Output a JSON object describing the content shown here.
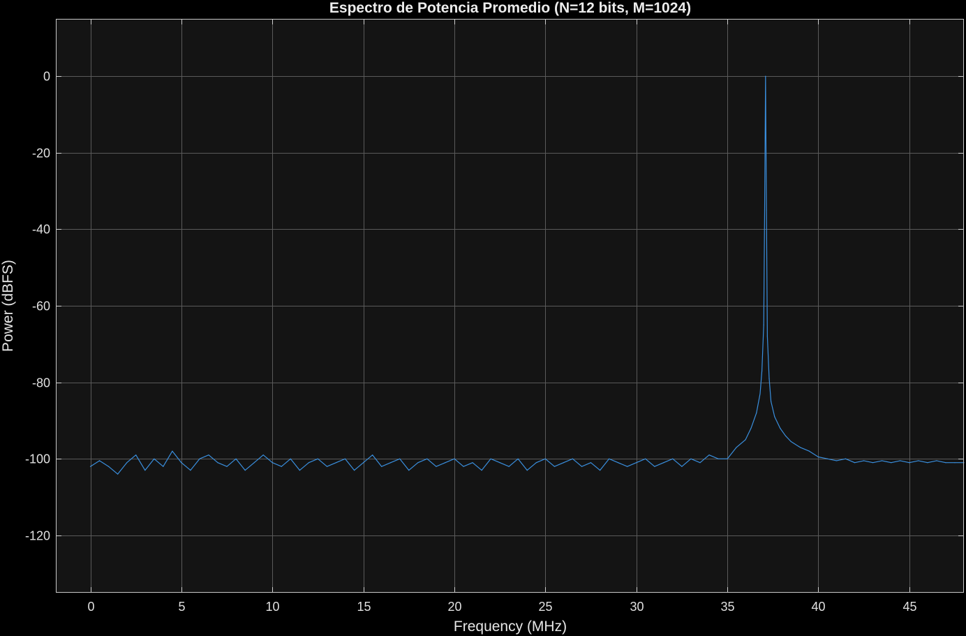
{
  "chart_data": {
    "type": "line",
    "title": "Espectro de Potencia Promedio (N=12 bits, M=1024)",
    "xlabel": "Frequency (MHz)",
    "ylabel": "Power (dBFS)",
    "xlim": [
      -1.9,
      48
    ],
    "ylim": [
      -135,
      15
    ],
    "xticks": [
      0,
      5,
      10,
      15,
      20,
      25,
      30,
      35,
      40,
      45
    ],
    "yticks": [
      0,
      -20,
      -40,
      -60,
      -80,
      -100,
      -120
    ],
    "xtick_labels": [
      "0",
      "5",
      "10",
      "15",
      "20",
      "25",
      "30",
      "35",
      "40",
      "45"
    ],
    "ytick_labels": [
      "0",
      "-20",
      "-40",
      "-60",
      "-80",
      "-100",
      "-120"
    ],
    "grid": true,
    "background": "#141414",
    "series": [
      {
        "color": "#3a8fde",
        "peak_frequency": 37.1,
        "peak_power": 0,
        "noise_floor": -101,
        "x": [
          0.0,
          0.5,
          1.0,
          1.5,
          2.0,
          2.5,
          3.0,
          3.5,
          4.0,
          4.5,
          5.0,
          5.5,
          6.0,
          6.5,
          7.0,
          7.5,
          8.0,
          8.5,
          9.0,
          9.5,
          10.0,
          10.5,
          11.0,
          11.5,
          12.0,
          12.5,
          13.0,
          13.5,
          14.0,
          14.5,
          15.0,
          15.5,
          16.0,
          16.5,
          17.0,
          17.5,
          18.0,
          18.5,
          19.0,
          19.5,
          20.0,
          20.5,
          21.0,
          21.5,
          22.0,
          22.5,
          23.0,
          23.5,
          24.0,
          24.5,
          25.0,
          25.5,
          26.0,
          26.5,
          27.0,
          27.5,
          28.0,
          28.5,
          29.0,
          29.5,
          30.0,
          30.5,
          31.0,
          31.5,
          32.0,
          32.5,
          33.0,
          33.5,
          34.0,
          34.5,
          35.0,
          35.5,
          36.0,
          36.3,
          36.6,
          36.8,
          36.9,
          37.0,
          37.05,
          37.1,
          37.15,
          37.2,
          37.3,
          37.4,
          37.6,
          37.9,
          38.2,
          38.5,
          39.0,
          39.5,
          40.0,
          40.5,
          41.0,
          41.5,
          42.0,
          42.5,
          43.0,
          43.5,
          44.0,
          44.5,
          45.0,
          45.5,
          46.0,
          46.5,
          47.0,
          47.5,
          48.0
        ],
        "y": [
          -102,
          -100.5,
          -102,
          -104,
          -101,
          -99,
          -103,
          -100,
          -102,
          -98,
          -101,
          -103,
          -100,
          -99,
          -101,
          -102,
          -100,
          -103,
          -101,
          -99,
          -101,
          -102,
          -100,
          -103,
          -101,
          -100,
          -102,
          -101,
          -100,
          -103,
          -101,
          -99,
          -102,
          -101,
          -100,
          -103,
          -101,
          -100,
          -102,
          -101,
          -100,
          -102,
          -101,
          -103,
          -100,
          -101,
          -102,
          -100,
          -103,
          -101,
          -100,
          -102,
          -101,
          -100,
          -102,
          -101,
          -103,
          -100,
          -101,
          -102,
          -101,
          -100,
          -102,
          -101,
          -100,
          -102,
          -100,
          -101,
          -99,
          -100,
          -100,
          -97,
          -95,
          -92,
          -88,
          -83,
          -77,
          -65,
          -35,
          0,
          -35,
          -68,
          -79,
          -85,
          -89,
          -92,
          -94,
          -95.5,
          -97,
          -98,
          -99.5,
          -100,
          -100.5,
          -100,
          -101,
          -100.5,
          -101,
          -100.5,
          -101,
          -100.5,
          -101,
          -100.5,
          -101,
          -100.5,
          -101,
          -101,
          -101
        ]
      }
    ]
  }
}
